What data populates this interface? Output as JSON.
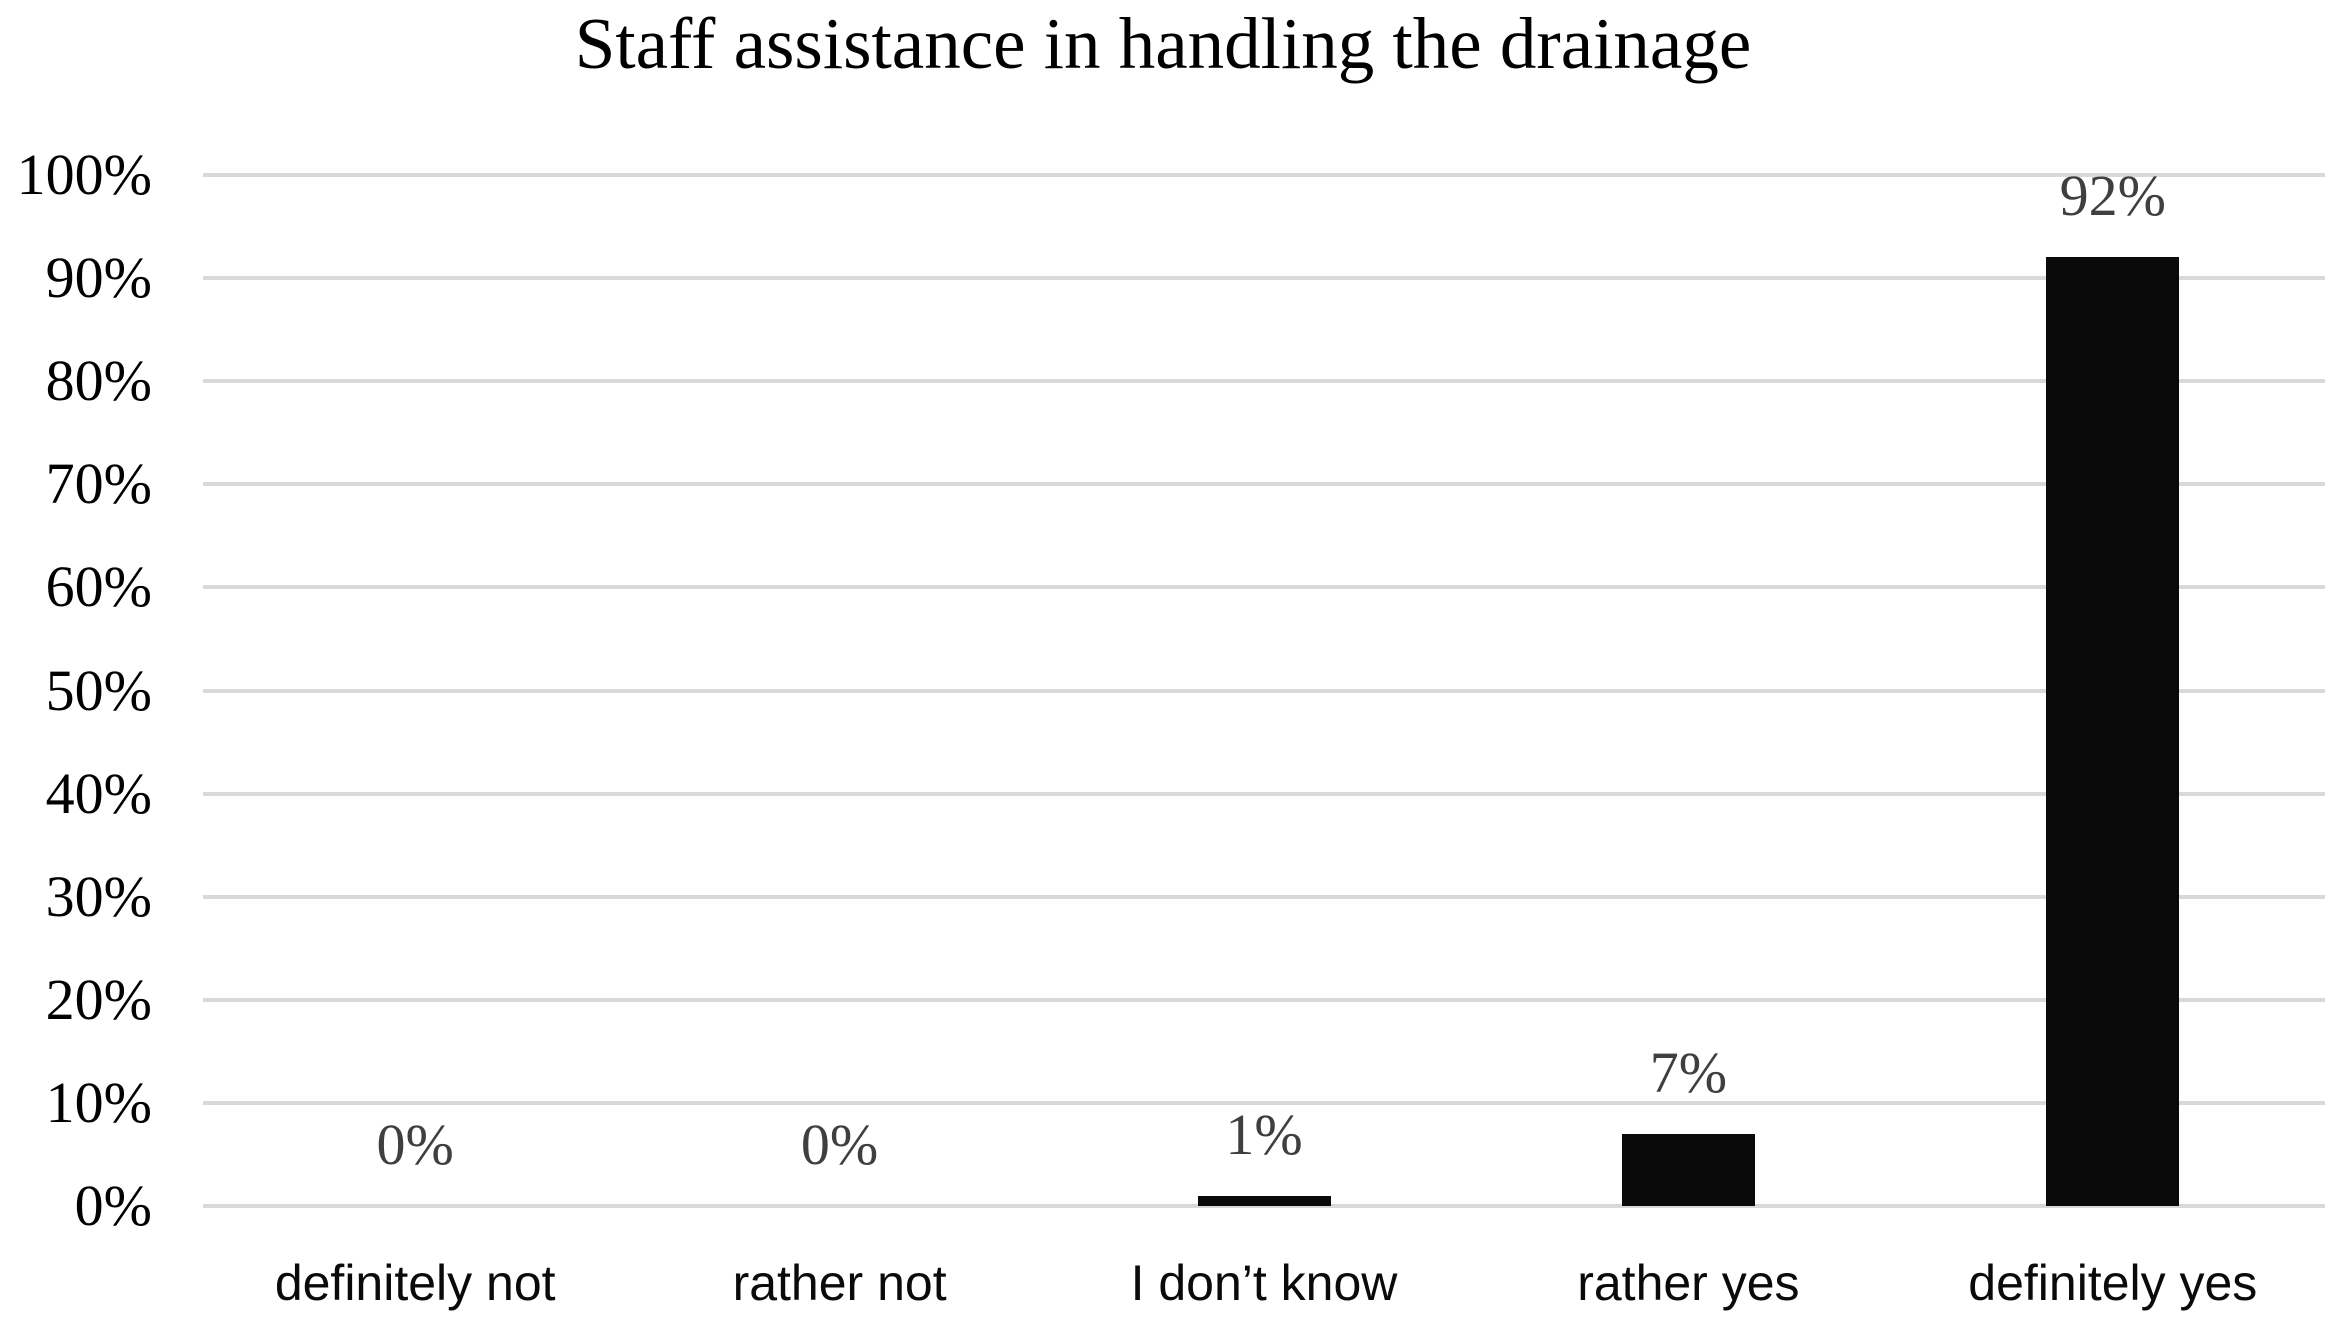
{
  "chart_data": {
    "type": "bar",
    "title": "Staff assistance in handling the drainage",
    "categories": [
      "definitely not",
      "rather not",
      "I don’t know",
      "rather yes",
      "definitely yes"
    ],
    "values": [
      0,
      0,
      1,
      7,
      92
    ],
    "data_labels": [
      "0%",
      "0%",
      "1%",
      "7%",
      "92%"
    ],
    "y_ticks": [
      "0%",
      "10%",
      "20%",
      "30%",
      "40%",
      "50%",
      "60%",
      "70%",
      "80%",
      "90%",
      "100%"
    ],
    "ylim": [
      0,
      100
    ],
    "y_step": 10,
    "grid": true,
    "legend": false,
    "xlabel": "",
    "ylabel": "",
    "colors": {
      "bar": "#0a0a0a",
      "gridline": "#d9d9d9",
      "data_label": "#3f3f3f",
      "axis_label": "#000000",
      "category_label": "#0a0a0a",
      "title": "#000000",
      "background": "#ffffff"
    }
  }
}
